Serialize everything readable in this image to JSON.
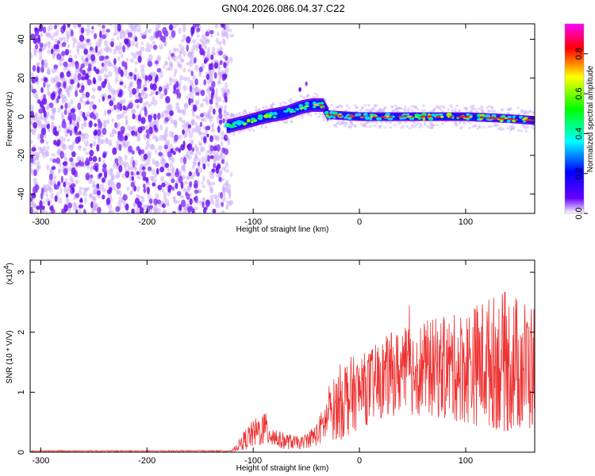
{
  "title": "GN04.2026.086.04.37.C22",
  "chart_data": [
    {
      "type": "heatmap",
      "name": "spectrogram",
      "xlabel": "Height of straight line (km)",
      "ylabel": "Frequency (Hz)",
      "xlim": [
        -310,
        165
      ],
      "ylim": [
        -50,
        48
      ],
      "xticks": [
        -300,
        -200,
        -100,
        0,
        100
      ],
      "xtick_labels": [
        "-300",
        "-200",
        "-100",
        "0",
        "100"
      ],
      "yticks": [
        -40,
        -20,
        0,
        20,
        40
      ],
      "ytick_labels": [
        "-40",
        "-20",
        "0",
        "20",
        "40"
      ],
      "noise_region_x": [
        -310,
        -125
      ],
      "signal_ridge": [
        {
          "x": -125,
          "freq": -5
        },
        {
          "x": -110,
          "freq": -3
        },
        {
          "x": -90,
          "freq": 0
        },
        {
          "x": -70,
          "freq": 2
        },
        {
          "x": -55,
          "freq": 5
        },
        {
          "x": -45,
          "freq": 6
        },
        {
          "x": -35,
          "freq": 6
        },
        {
          "x": -30,
          "freq": 1
        },
        {
          "x": 0,
          "freq": 0
        },
        {
          "x": 50,
          "freq": 0
        },
        {
          "x": 100,
          "freq": 0
        },
        {
          "x": 140,
          "freq": -1
        },
        {
          "x": 165,
          "freq": -2
        }
      ],
      "colorbar": {
        "label": "Normalized spectral amplitude",
        "range": [
          0,
          0.95
        ],
        "ticks": [
          0.0,
          0.2,
          0.4,
          0.6,
          0.8
        ],
        "tick_labels": [
          "0.0",
          "0.2",
          "0.4",
          "0.6",
          "0.8"
        ],
        "colors": [
          "#ffffff",
          "#6600ff",
          "#0000ff",
          "#00ffff",
          "#00ff00",
          "#ffff00",
          "#ff0000",
          "#ff00ff"
        ]
      }
    },
    {
      "type": "line",
      "name": "snr",
      "xlabel": "Height of straight line (km)",
      "ylabel": "SNR (10 * V/V)",
      "multiplier_label": "(x10",
      "multiplier_exp": "4",
      "multiplier_close": ")",
      "xlim": [
        -310,
        165
      ],
      "ylim": [
        0,
        3.2
      ],
      "xticks": [
        -300,
        -200,
        -100,
        0,
        100
      ],
      "xtick_labels": [
        "-300",
        "-200",
        "-100",
        "0",
        "100"
      ],
      "yticks": [
        0,
        1,
        2,
        3
      ],
      "ytick_labels": [
        "0",
        "1",
        "2",
        "3"
      ],
      "line_color": "#ee3333",
      "envelope": [
        {
          "x": -310,
          "mean": 0.02,
          "amp": 0.01
        },
        {
          "x": -120,
          "mean": 0.02,
          "amp": 0.01
        },
        {
          "x": -105,
          "mean": 0.25,
          "amp": 0.2
        },
        {
          "x": -90,
          "mean": 0.4,
          "amp": 0.3
        },
        {
          "x": -75,
          "mean": 0.2,
          "amp": 0.15
        },
        {
          "x": -55,
          "mean": 0.15,
          "amp": 0.1
        },
        {
          "x": -40,
          "mean": 0.3,
          "amp": 0.2
        },
        {
          "x": -25,
          "mean": 0.7,
          "amp": 0.5
        },
        {
          "x": -15,
          "mean": 0.9,
          "amp": 0.7
        },
        {
          "x": 0,
          "mean": 1.0,
          "amp": 0.6
        },
        {
          "x": 30,
          "mean": 1.3,
          "amp": 0.7
        },
        {
          "x": 60,
          "mean": 1.4,
          "amp": 0.8
        },
        {
          "x": 90,
          "mean": 1.4,
          "amp": 0.9
        },
        {
          "x": 120,
          "mean": 1.5,
          "amp": 1.1
        },
        {
          "x": 140,
          "mean": 1.5,
          "amp": 1.2
        },
        {
          "x": 165,
          "mean": 1.4,
          "amp": 1.1
        }
      ]
    }
  ]
}
